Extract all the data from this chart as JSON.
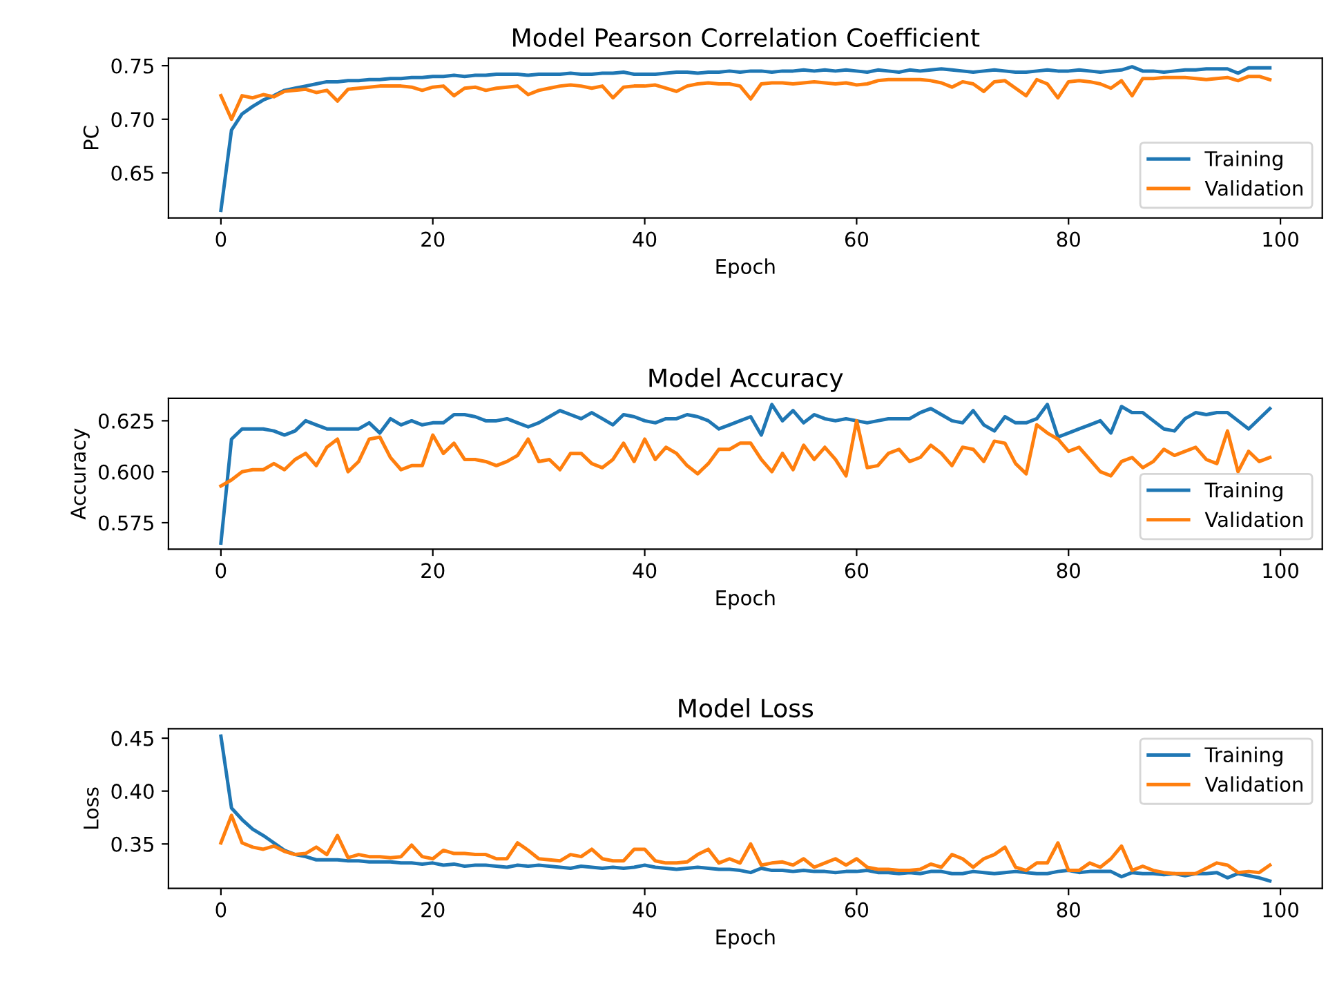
{
  "chart_data": [
    {
      "type": "line",
      "title": "Model Pearson Correlation Coefficient",
      "xlabel": "Epoch",
      "ylabel": "PC",
      "legend": "bottom right",
      "grid": false,
      "x": [
        0,
        1,
        2,
        3,
        4,
        5,
        6,
        7,
        8,
        9,
        10,
        11,
        12,
        13,
        14,
        15,
        16,
        17,
        18,
        19,
        20,
        21,
        22,
        23,
        24,
        25,
        26,
        27,
        28,
        29,
        30,
        31,
        32,
        33,
        34,
        35,
        36,
        37,
        38,
        39,
        40,
        41,
        42,
        43,
        44,
        45,
        46,
        47,
        48,
        49,
        50,
        51,
        52,
        53,
        54,
        55,
        56,
        57,
        58,
        59,
        60,
        61,
        62,
        63,
        64,
        65,
        66,
        67,
        68,
        69,
        70,
        71,
        72,
        73,
        74,
        75,
        76,
        77,
        78,
        79,
        80,
        81,
        82,
        83,
        84,
        85,
        86,
        87,
        88,
        89,
        90,
        91,
        92,
        93,
        94,
        95,
        96,
        97,
        98,
        99
      ],
      "xlim": [
        -4.95,
        103.95
      ],
      "xticks": [
        0,
        20,
        40,
        60,
        80,
        100
      ],
      "ylim": [
        0.608,
        0.757
      ],
      "yticks": [
        {
          "value": 0.65,
          "label": "0.65"
        },
        {
          "value": 0.7,
          "label": "0.70"
        },
        {
          "value": 0.75,
          "label": "0.75"
        }
      ],
      "series": [
        {
          "name": "Training",
          "color": "#1f77b4",
          "values": [
            0.615,
            0.69,
            0.705,
            0.712,
            0.718,
            0.722,
            0.727,
            0.729,
            0.731,
            0.733,
            0.735,
            0.735,
            0.736,
            0.736,
            0.737,
            0.737,
            0.738,
            0.738,
            0.739,
            0.739,
            0.74,
            0.74,
            0.741,
            0.74,
            0.741,
            0.741,
            0.742,
            0.742,
            0.742,
            0.741,
            0.742,
            0.742,
            0.742,
            0.743,
            0.742,
            0.742,
            0.743,
            0.743,
            0.744,
            0.742,
            0.742,
            0.742,
            0.743,
            0.744,
            0.744,
            0.743,
            0.744,
            0.744,
            0.745,
            0.744,
            0.745,
            0.745,
            0.744,
            0.745,
            0.745,
            0.746,
            0.745,
            0.746,
            0.745,
            0.746,
            0.745,
            0.744,
            0.746,
            0.745,
            0.744,
            0.746,
            0.745,
            0.746,
            0.747,
            0.746,
            0.745,
            0.744,
            0.745,
            0.746,
            0.745,
            0.744,
            0.744,
            0.745,
            0.746,
            0.745,
            0.745,
            0.746,
            0.745,
            0.744,
            0.745,
            0.746,
            0.749,
            0.745,
            0.745,
            0.744,
            0.745,
            0.746,
            0.746,
            0.747,
            0.747,
            0.747,
            0.743,
            0.748,
            0.748,
            0.748
          ]
        },
        {
          "name": "Validation",
          "color": "#ff7f0e",
          "values": [
            0.722,
            0.7,
            0.722,
            0.72,
            0.723,
            0.721,
            0.726,
            0.727,
            0.728,
            0.725,
            0.727,
            0.717,
            0.728,
            0.729,
            0.73,
            0.731,
            0.731,
            0.731,
            0.73,
            0.727,
            0.73,
            0.731,
            0.722,
            0.729,
            0.73,
            0.727,
            0.729,
            0.73,
            0.731,
            0.723,
            0.727,
            0.729,
            0.731,
            0.732,
            0.731,
            0.729,
            0.731,
            0.72,
            0.73,
            0.731,
            0.731,
            0.732,
            0.729,
            0.726,
            0.731,
            0.733,
            0.734,
            0.733,
            0.733,
            0.731,
            0.719,
            0.733,
            0.734,
            0.734,
            0.733,
            0.734,
            0.735,
            0.734,
            0.733,
            0.734,
            0.732,
            0.733,
            0.736,
            0.737,
            0.737,
            0.737,
            0.737,
            0.736,
            0.734,
            0.73,
            0.735,
            0.733,
            0.726,
            0.735,
            0.736,
            0.729,
            0.722,
            0.737,
            0.733,
            0.72,
            0.735,
            0.736,
            0.735,
            0.733,
            0.729,
            0.736,
            0.722,
            0.738,
            0.738,
            0.739,
            0.739,
            0.739,
            0.738,
            0.737,
            0.738,
            0.739,
            0.736,
            0.74,
            0.74,
            0.737
          ]
        }
      ]
    },
    {
      "type": "line",
      "title": "Model Accuracy",
      "xlabel": "Epoch",
      "ylabel": "Accuracy",
      "legend": "bottom right",
      "grid": false,
      "x": [
        0,
        1,
        2,
        3,
        4,
        5,
        6,
        7,
        8,
        9,
        10,
        11,
        12,
        13,
        14,
        15,
        16,
        17,
        18,
        19,
        20,
        21,
        22,
        23,
        24,
        25,
        26,
        27,
        28,
        29,
        30,
        31,
        32,
        33,
        34,
        35,
        36,
        37,
        38,
        39,
        40,
        41,
        42,
        43,
        44,
        45,
        46,
        47,
        48,
        49,
        50,
        51,
        52,
        53,
        54,
        55,
        56,
        57,
        58,
        59,
        60,
        61,
        62,
        63,
        64,
        65,
        66,
        67,
        68,
        69,
        70,
        71,
        72,
        73,
        74,
        75,
        76,
        77,
        78,
        79,
        80,
        81,
        82,
        83,
        84,
        85,
        86,
        87,
        88,
        89,
        90,
        91,
        92,
        93,
        94,
        95,
        96,
        97,
        98,
        99
      ],
      "xlim": [
        -4.95,
        103.95
      ],
      "xticks": [
        0,
        20,
        40,
        60,
        80,
        100
      ],
      "ylim": [
        0.562,
        0.636
      ],
      "yticks": [
        {
          "value": 0.575,
          "label": "0.575"
        },
        {
          "value": 0.6,
          "label": "0.600"
        },
        {
          "value": 0.625,
          "label": "0.625"
        }
      ],
      "series": [
        {
          "name": "Training",
          "color": "#1f77b4",
          "values": [
            0.565,
            0.616,
            0.621,
            0.621,
            0.621,
            0.62,
            0.618,
            0.62,
            0.625,
            0.623,
            0.621,
            0.621,
            0.621,
            0.621,
            0.624,
            0.619,
            0.626,
            0.623,
            0.625,
            0.623,
            0.624,
            0.624,
            0.628,
            0.628,
            0.627,
            0.625,
            0.625,
            0.626,
            0.624,
            0.622,
            0.624,
            0.627,
            0.63,
            0.628,
            0.626,
            0.629,
            0.626,
            0.623,
            0.628,
            0.627,
            0.625,
            0.624,
            0.626,
            0.626,
            0.628,
            0.627,
            0.625,
            0.621,
            0.623,
            0.625,
            0.627,
            0.618,
            0.633,
            0.625,
            0.63,
            0.624,
            0.628,
            0.626,
            0.625,
            0.626,
            0.625,
            0.624,
            0.625,
            0.626,
            0.626,
            0.626,
            0.629,
            0.631,
            0.628,
            0.625,
            0.624,
            0.63,
            0.623,
            0.62,
            0.627,
            0.624,
            0.624,
            0.626,
            0.633,
            0.617,
            0.619,
            0.621,
            0.623,
            0.625,
            0.619,
            0.632,
            0.629,
            0.629,
            0.625,
            0.621,
            0.62,
            0.626,
            0.629,
            0.628,
            0.629,
            0.629,
            0.625,
            0.621,
            0.626,
            0.631
          ]
        },
        {
          "name": "Validation",
          "color": "#ff7f0e",
          "values": [
            0.593,
            0.596,
            0.6,
            0.601,
            0.601,
            0.604,
            0.601,
            0.606,
            0.609,
            0.603,
            0.612,
            0.616,
            0.6,
            0.605,
            0.616,
            0.617,
            0.607,
            0.601,
            0.603,
            0.603,
            0.618,
            0.609,
            0.614,
            0.606,
            0.606,
            0.605,
            0.603,
            0.605,
            0.608,
            0.616,
            0.605,
            0.606,
            0.601,
            0.609,
            0.609,
            0.604,
            0.602,
            0.606,
            0.614,
            0.605,
            0.616,
            0.606,
            0.612,
            0.609,
            0.603,
            0.599,
            0.604,
            0.611,
            0.611,
            0.614,
            0.614,
            0.606,
            0.6,
            0.609,
            0.601,
            0.613,
            0.606,
            0.612,
            0.606,
            0.598,
            0.625,
            0.602,
            0.603,
            0.609,
            0.611,
            0.605,
            0.607,
            0.613,
            0.609,
            0.603,
            0.612,
            0.611,
            0.605,
            0.615,
            0.614,
            0.604,
            0.599,
            0.623,
            0.619,
            0.616,
            0.61,
            0.612,
            0.606,
            0.6,
            0.598,
            0.605,
            0.607,
            0.602,
            0.605,
            0.611,
            0.608,
            0.61,
            0.612,
            0.606,
            0.604,
            0.62,
            0.6,
            0.61,
            0.605,
            0.607
          ]
        }
      ]
    },
    {
      "type": "line",
      "title": "Model Loss",
      "xlabel": "Epoch",
      "ylabel": "Loss",
      "legend": "top right",
      "grid": false,
      "x": [
        0,
        1,
        2,
        3,
        4,
        5,
        6,
        7,
        8,
        9,
        10,
        11,
        12,
        13,
        14,
        15,
        16,
        17,
        18,
        19,
        20,
        21,
        22,
        23,
        24,
        25,
        26,
        27,
        28,
        29,
        30,
        31,
        32,
        33,
        34,
        35,
        36,
        37,
        38,
        39,
        40,
        41,
        42,
        43,
        44,
        45,
        46,
        47,
        48,
        49,
        50,
        51,
        52,
        53,
        54,
        55,
        56,
        57,
        58,
        59,
        60,
        61,
        62,
        63,
        64,
        65,
        66,
        67,
        68,
        69,
        70,
        71,
        72,
        73,
        74,
        75,
        76,
        77,
        78,
        79,
        80,
        81,
        82,
        83,
        84,
        85,
        86,
        87,
        88,
        89,
        90,
        91,
        92,
        93,
        94,
        95,
        96,
        97,
        98,
        99
      ],
      "xlim": [
        -4.95,
        103.95
      ],
      "xticks": [
        0,
        20,
        40,
        60,
        80,
        100
      ],
      "ylim": [
        0.308,
        0.459
      ],
      "yticks": [
        {
          "value": 0.35,
          "label": "0.35"
        },
        {
          "value": 0.4,
          "label": "0.40"
        },
        {
          "value": 0.45,
          "label": "0.45"
        }
      ],
      "series": [
        {
          "name": "Training",
          "color": "#1f77b4",
          "values": [
            0.452,
            0.384,
            0.373,
            0.364,
            0.358,
            0.351,
            0.344,
            0.34,
            0.338,
            0.335,
            0.335,
            0.335,
            0.334,
            0.334,
            0.333,
            0.333,
            0.333,
            0.332,
            0.332,
            0.331,
            0.332,
            0.33,
            0.331,
            0.329,
            0.33,
            0.33,
            0.329,
            0.328,
            0.33,
            0.329,
            0.33,
            0.329,
            0.328,
            0.327,
            0.329,
            0.328,
            0.327,
            0.328,
            0.327,
            0.328,
            0.33,
            0.328,
            0.327,
            0.326,
            0.327,
            0.328,
            0.327,
            0.326,
            0.326,
            0.325,
            0.323,
            0.327,
            0.325,
            0.325,
            0.324,
            0.325,
            0.324,
            0.324,
            0.323,
            0.324,
            0.324,
            0.325,
            0.323,
            0.323,
            0.322,
            0.323,
            0.322,
            0.324,
            0.324,
            0.322,
            0.322,
            0.324,
            0.323,
            0.322,
            0.323,
            0.324,
            0.323,
            0.322,
            0.322,
            0.324,
            0.325,
            0.323,
            0.324,
            0.324,
            0.324,
            0.319,
            0.323,
            0.322,
            0.322,
            0.321,
            0.322,
            0.32,
            0.322,
            0.322,
            0.323,
            0.318,
            0.322,
            0.32,
            0.318,
            0.315
          ]
        },
        {
          "name": "Validation",
          "color": "#ff7f0e",
          "values": [
            0.351,
            0.377,
            0.351,
            0.347,
            0.345,
            0.348,
            0.343,
            0.34,
            0.341,
            0.347,
            0.34,
            0.358,
            0.337,
            0.34,
            0.338,
            0.338,
            0.337,
            0.338,
            0.349,
            0.338,
            0.336,
            0.344,
            0.341,
            0.341,
            0.34,
            0.34,
            0.336,
            0.336,
            0.351,
            0.344,
            0.336,
            0.335,
            0.334,
            0.34,
            0.338,
            0.345,
            0.336,
            0.334,
            0.334,
            0.345,
            0.345,
            0.334,
            0.332,
            0.332,
            0.333,
            0.34,
            0.345,
            0.332,
            0.336,
            0.332,
            0.35,
            0.33,
            0.332,
            0.333,
            0.33,
            0.336,
            0.328,
            0.332,
            0.336,
            0.33,
            0.336,
            0.328,
            0.326,
            0.326,
            0.325,
            0.325,
            0.326,
            0.331,
            0.328,
            0.34,
            0.336,
            0.328,
            0.336,
            0.34,
            0.347,
            0.328,
            0.325,
            0.332,
            0.332,
            0.351,
            0.325,
            0.325,
            0.332,
            0.328,
            0.336,
            0.348,
            0.325,
            0.329,
            0.325,
            0.323,
            0.322,
            0.322,
            0.322,
            0.327,
            0.332,
            0.33,
            0.323,
            0.324,
            0.323,
            0.33
          ]
        }
      ]
    }
  ]
}
